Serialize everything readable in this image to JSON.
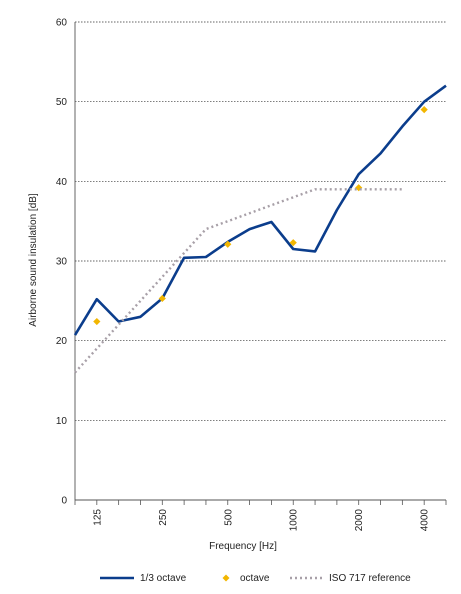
{
  "chart_data": {
    "type": "line",
    "title": "",
    "xlabel": "Frequency [Hz]",
    "ylabel": "Airborne sound insulation [dB]",
    "x_scale": "log-third-octave",
    "ylim": [
      0,
      60
    ],
    "y_ticks": [
      0,
      10,
      20,
      30,
      40,
      50,
      60
    ],
    "x_tick_labels": [
      "125",
      "250",
      "500",
      "1000",
      "2000",
      "4000"
    ],
    "third_octave_bands": [
      100,
      125,
      160,
      200,
      250,
      315,
      400,
      500,
      630,
      800,
      1000,
      1250,
      1600,
      2000,
      2500,
      3150,
      4000,
      5000
    ],
    "grid": "horizontal",
    "legend_position": "bottom",
    "series": [
      {
        "name": "1/3 octave",
        "style": "solid-line",
        "color": "#0b3d8c",
        "x": [
          100,
          125,
          160,
          200,
          250,
          315,
          400,
          500,
          630,
          800,
          1000,
          1250,
          1600,
          2000,
          2500,
          3150,
          4000,
          5000
        ],
        "y": [
          20.7,
          25.2,
          22.4,
          23.0,
          25.3,
          30.4,
          30.5,
          32.4,
          34.0,
          34.9,
          31.5,
          31.2,
          36.4,
          40.9,
          43.5,
          46.9,
          50.0,
          52.0
        ]
      },
      {
        "name": "octave",
        "style": "diamond-markers",
        "color": "#f2b600",
        "x": [
          125,
          250,
          500,
          1000,
          2000,
          4000
        ],
        "y": [
          22.4,
          25.3,
          32.1,
          32.3,
          39.2,
          49.0
        ]
      },
      {
        "name": "ISO 717 reference",
        "style": "dotted-line",
        "color": "#a8a0a8",
        "x": [
          100,
          125,
          160,
          200,
          250,
          315,
          400,
          500,
          630,
          800,
          1000,
          1250,
          1600,
          2000,
          2500,
          3150
        ],
        "y": [
          16,
          19,
          22,
          25,
          28,
          31,
          34,
          35,
          36,
          37,
          38,
          39,
          39,
          39,
          39,
          39
        ]
      }
    ]
  }
}
